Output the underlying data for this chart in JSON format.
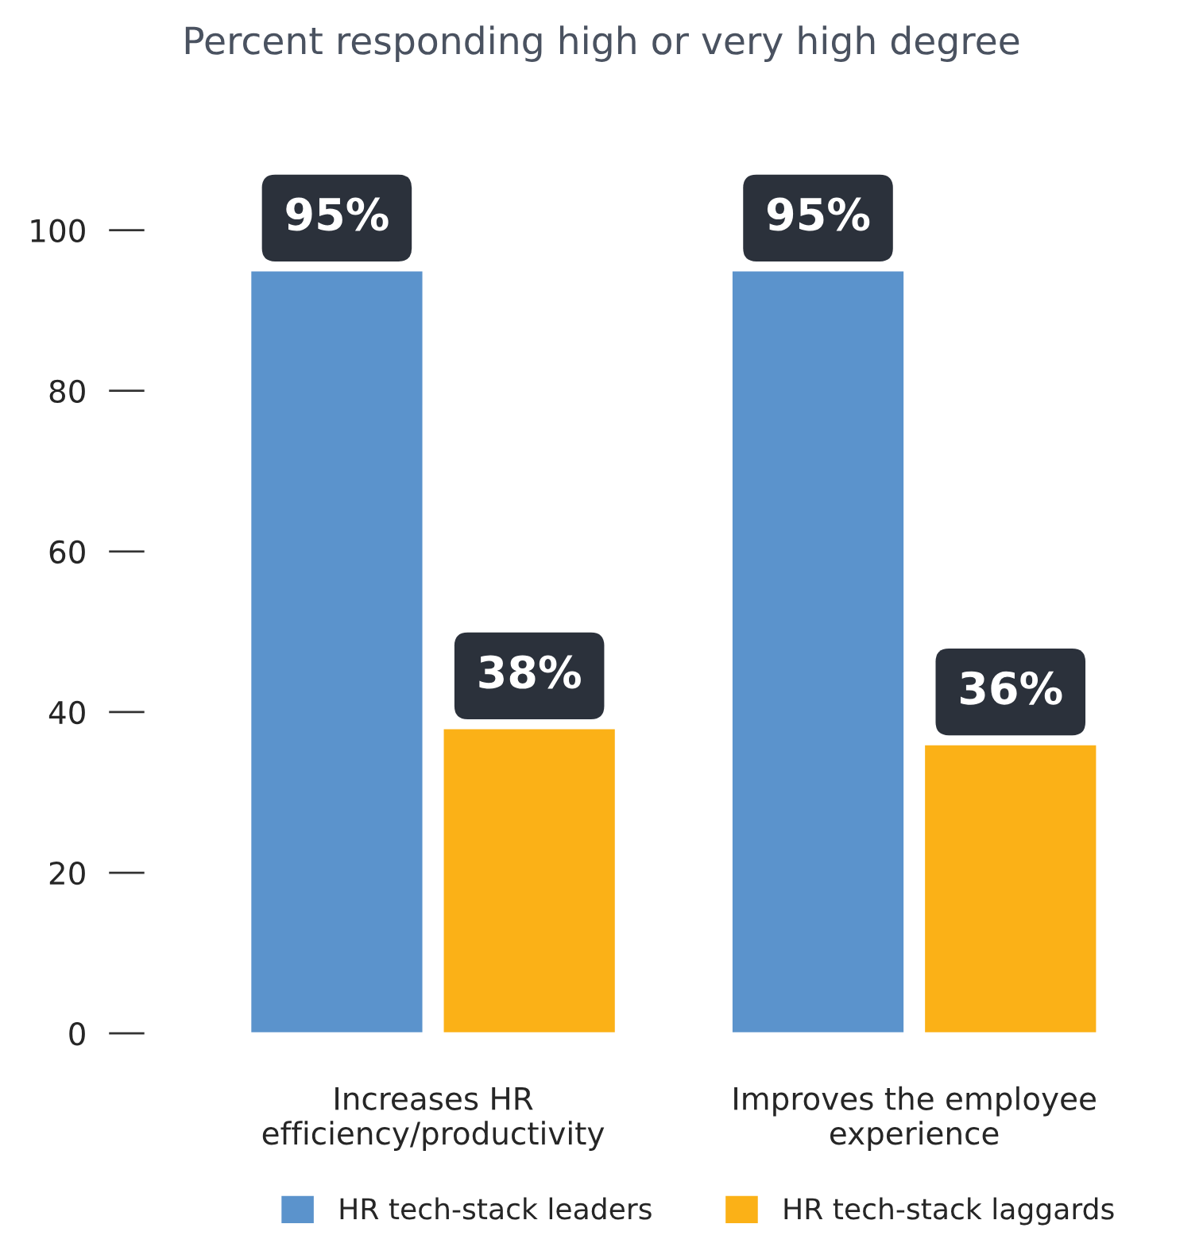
{
  "chart_data": {
    "type": "bar",
    "title": "Percent responding high or very high degree",
    "categories": [
      "Increases HR\nefficiency/productivity",
      "Improves the employee\nexperience"
    ],
    "series": [
      {
        "name": "HR tech-stack leaders",
        "color": "#5b93cc",
        "values": [
          95,
          95
        ]
      },
      {
        "name": "HR tech-stack laggards",
        "color": "#fbb117",
        "values": [
          38,
          36
        ]
      }
    ],
    "value_labels": [
      [
        "95%",
        "95%"
      ],
      [
        "38%",
        "36%"
      ]
    ],
    "ylim": [
      0,
      100
    ],
    "yticks": [
      0,
      20,
      40,
      60,
      80,
      100
    ],
    "grid": false,
    "legend": "bottom"
  }
}
